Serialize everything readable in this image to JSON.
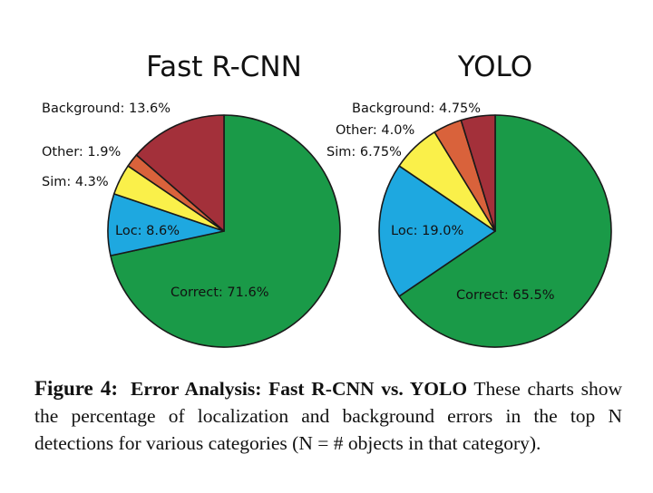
{
  "chart_data": [
    {
      "type": "pie",
      "title": "Fast R-CNN",
      "start": "top",
      "direction": "clockwise",
      "slices": [
        {
          "name": "Correct",
          "value": 71.6,
          "label": "Correct: 71.6%",
          "color": "#1a9a48"
        },
        {
          "name": "Loc",
          "value": 8.6,
          "label": "Loc: 8.6%",
          "color": "#1ea8e0"
        },
        {
          "name": "Sim",
          "value": 4.3,
          "label": "Sim: 4.3%",
          "color": "#faf04a"
        },
        {
          "name": "Other",
          "value": 1.9,
          "label": "Other: 1.9%",
          "color": "#d9623b"
        },
        {
          "name": "Background",
          "value": 13.6,
          "label": "Background: 13.6%",
          "color": "#a3303a"
        }
      ]
    },
    {
      "type": "pie",
      "title": "YOLO",
      "start": "top",
      "direction": "clockwise",
      "slices": [
        {
          "name": "Correct",
          "value": 65.5,
          "label": "Correct: 65.5%",
          "color": "#1a9a48"
        },
        {
          "name": "Loc",
          "value": 19.0,
          "label": "Loc: 19.0%",
          "color": "#1ea8e0"
        },
        {
          "name": "Sim",
          "value": 6.75,
          "label": "Sim: 6.75%",
          "color": "#faf04a"
        },
        {
          "name": "Other",
          "value": 4.0,
          "label": "Other: 4.0%",
          "color": "#d9623b"
        },
        {
          "name": "Background",
          "value": 4.75,
          "label": "Background: 4.75%",
          "color": "#a3303a"
        }
      ]
    }
  ],
  "caption": {
    "label": "Figure 4:",
    "title": "Error Analysis:  Fast R-CNN vs.  YOLO",
    "text": " These charts show the percentage of localization and background errors in the top N detections for various categories (N = # objects in that category)."
  }
}
